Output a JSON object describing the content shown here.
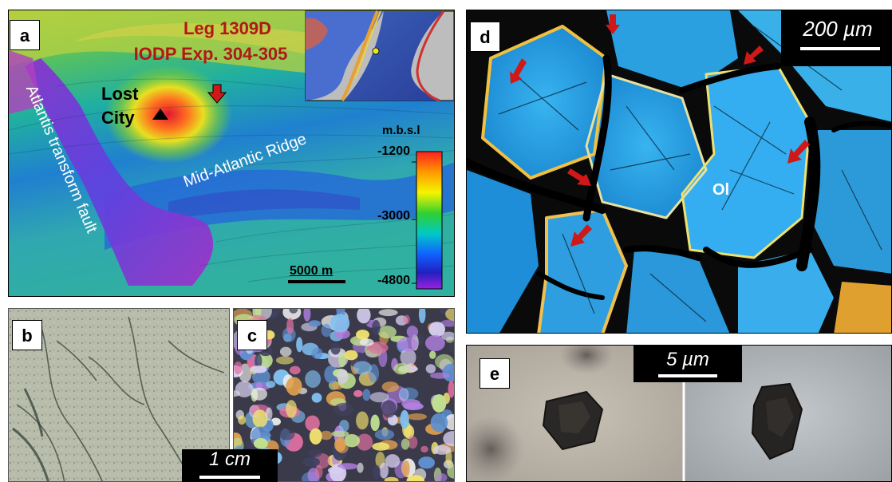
{
  "panels": {
    "a": {
      "label": "a",
      "title_line1": "Leg 1309D",
      "title_line2": "IODP Exp. 304-305",
      "site_name": "Lost City",
      "fault_label": "Atlantis transform fault",
      "ridge_label": "Mid-Atlantic Ridge",
      "scale_bar": "5000 m",
      "colorbar": {
        "unit": "m.b.s.l",
        "ticks": [
          "-1200",
          "-3000",
          "-4800"
        ],
        "colors": [
          "#ff2020",
          "#ff9a00",
          "#f4f400",
          "#30d030",
          "#00c8c8",
          "#1060ff",
          "#2020c0",
          "#9a20e0"
        ]
      }
    },
    "b": {
      "label": "b"
    },
    "c": {
      "label": "c"
    },
    "bc_scale_bar": "1 cm",
    "d": {
      "label": "d",
      "scale_bar": "200 µm",
      "mineral_label": "Ol"
    },
    "e": {
      "label": "e",
      "scale_bar": "5 µm"
    }
  },
  "colors": {
    "title_red": "#b01818",
    "arrow_red": "#d01818",
    "mineral_blue": "#2aa6e8"
  }
}
